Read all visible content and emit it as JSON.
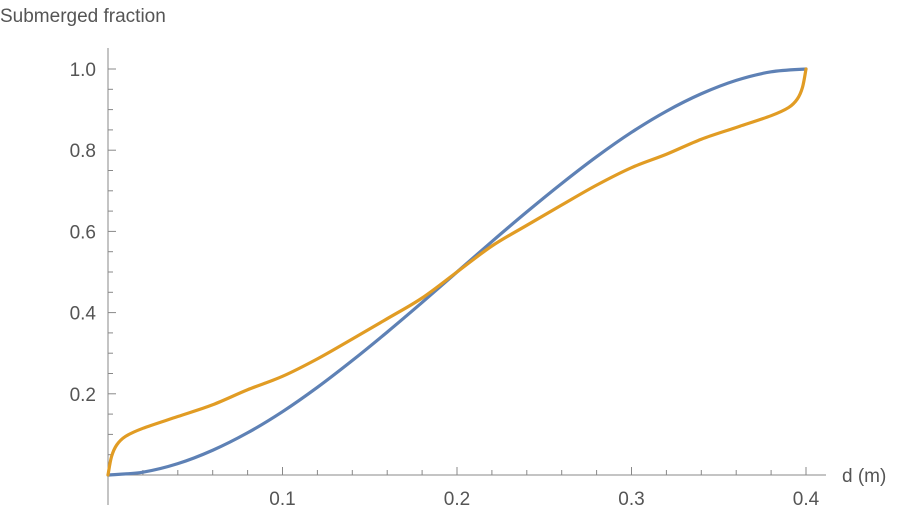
{
  "chart_data": {
    "type": "line",
    "title": "",
    "xlabel": "d (m)",
    "ylabel": "Submerged fraction",
    "xlim": [
      0,
      0.4
    ],
    "ylim": [
      0,
      1.0
    ],
    "x_ticks": [
      "0.1",
      "0.2",
      "0.3",
      "0.4"
    ],
    "x_tick_values": [
      0.1,
      0.2,
      0.3,
      0.4
    ],
    "y_ticks": [
      "0.2",
      "0.4",
      "0.6",
      "0.8",
      "1.0"
    ],
    "y_tick_values": [
      0.2,
      0.4,
      0.6,
      0.8,
      1.0
    ],
    "grid": false,
    "series": [
      {
        "color": "#5E81B5",
        "x": [
          0,
          0.02,
          0.04,
          0.06,
          0.08,
          0.1,
          0.12,
          0.14,
          0.16,
          0.18,
          0.2,
          0.22,
          0.24,
          0.26,
          0.28,
          0.3,
          0.32,
          0.34,
          0.36,
          0.38,
          0.4
        ],
        "y": [
          0,
          0.007,
          0.028,
          0.061,
          0.104,
          0.156,
          0.216,
          0.282,
          0.352,
          0.425,
          0.5,
          0.575,
          0.648,
          0.718,
          0.784,
          0.844,
          0.896,
          0.939,
          0.972,
          0.993,
          1.0
        ]
      },
      {
        "color": "#E19C24",
        "x": [
          0,
          0.002,
          0.005,
          0.01,
          0.02,
          0.04,
          0.06,
          0.08,
          0.1,
          0.12,
          0.14,
          0.16,
          0.18,
          0.2,
          0.22,
          0.24,
          0.26,
          0.28,
          0.3,
          0.32,
          0.34,
          0.36,
          0.38,
          0.39,
          0.395,
          0.398,
          0.4
        ],
        "y": [
          0,
          0.045,
          0.074,
          0.095,
          0.115,
          0.144,
          0.173,
          0.21,
          0.243,
          0.286,
          0.335,
          0.385,
          0.436,
          0.5,
          0.564,
          0.615,
          0.665,
          0.714,
          0.757,
          0.79,
          0.827,
          0.856,
          0.885,
          0.905,
          0.926,
          0.955,
          1.0
        ]
      }
    ]
  }
}
